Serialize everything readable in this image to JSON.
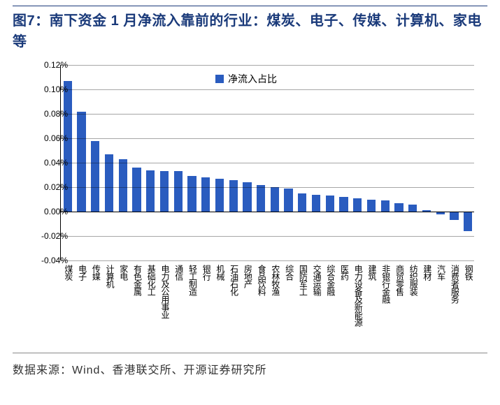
{
  "title_line": "图7：南下资金 1 月净流入靠前的行业：煤炭、电子、传媒、计算机、家电等",
  "source_line": "数据来源：Wind、香港联交所、开源证券研究所",
  "chart": {
    "type": "bar",
    "legend_label": "净流入占比",
    "bar_color": "#2a5cbf",
    "grid_color": "#000000",
    "background_color": "#ffffff",
    "ylim_min": -0.04,
    "ylim_max": 0.12,
    "ytick_step": 0.02,
    "y_format": "percent_2dp",
    "yticks": [
      {
        "v": 0.12,
        "label": "0.12%"
      },
      {
        "v": 0.1,
        "label": "0.10%"
      },
      {
        "v": 0.08,
        "label": "0.08%"
      },
      {
        "v": 0.06,
        "label": "0.06%"
      },
      {
        "v": 0.04,
        "label": "0.04%"
      },
      {
        "v": 0.02,
        "label": "0.02%"
      },
      {
        "v": 0.0,
        "label": "0.00%"
      },
      {
        "v": -0.02,
        "label": "-0.02%"
      },
      {
        "v": -0.04,
        "label": "-0.04%"
      }
    ],
    "categories": [
      "煤炭",
      "电子",
      "传媒",
      "计算机",
      "家电",
      "有色金属",
      "基础化工",
      "电力及公用事业",
      "通信",
      "轻工制造",
      "银行",
      "机械",
      "石油石化",
      "房地产",
      "食品饮料",
      "农林牧渔",
      "综合",
      "国防军工",
      "交通运输",
      "综合金融",
      "医药",
      "电力设备及新能源",
      "建筑",
      "非银行金融",
      "商贸零售",
      "纺织服装",
      "建材",
      "汽车",
      "消费者服务",
      "钢铁"
    ],
    "values": [
      0.107,
      0.082,
      0.058,
      0.047,
      0.043,
      0.036,
      0.034,
      0.033,
      0.033,
      0.029,
      0.028,
      0.027,
      0.026,
      0.024,
      0.022,
      0.02,
      0.019,
      0.015,
      0.014,
      0.013,
      0.012,
      0.011,
      0.01,
      0.009,
      0.007,
      0.006,
      0.001,
      -0.002,
      -0.007,
      -0.016
    ],
    "bar_width_ratio": 0.62,
    "xlabel_fontsize": 12,
    "ylabel_fontsize": 12,
    "legend_fontsize": 14
  }
}
